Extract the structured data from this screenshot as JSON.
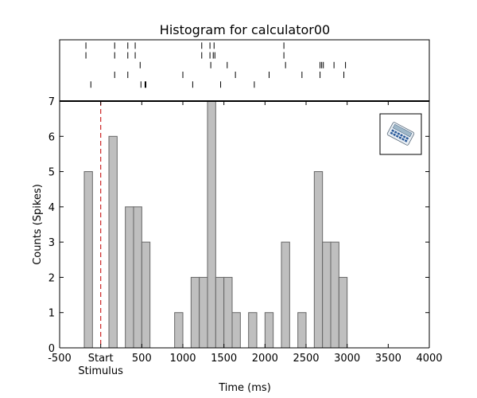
{
  "chart_data": {
    "type": "histogram",
    "title": "Histogram for calculator00",
    "xlabel": "Time (ms)",
    "ylabel": "Counts (Spikes)",
    "xlim": [
      -500,
      4000
    ],
    "ylim": [
      0,
      7
    ],
    "xticks": [
      -500,
      0,
      500,
      1000,
      1500,
      2000,
      2500,
      3000,
      3500,
      4000
    ],
    "xtick_labels": [
      "-500",
      "Start",
      "500",
      "1000",
      "1500",
      "2000",
      "2500",
      "3000",
      "3500",
      "4000"
    ],
    "xtick_sublabels": {
      "0": "Stimulus"
    },
    "yticks": [
      0,
      1,
      2,
      3,
      4,
      5,
      6,
      7
    ],
    "stimulus_line_x": 0,
    "bin_width": 100,
    "bins": [
      {
        "x": -200,
        "count": 5
      },
      {
        "x": 100,
        "count": 6
      },
      {
        "x": 300,
        "count": 4
      },
      {
        "x": 400,
        "count": 4
      },
      {
        "x": 500,
        "count": 3
      },
      {
        "x": 900,
        "count": 1
      },
      {
        "x": 1100,
        "count": 2
      },
      {
        "x": 1200,
        "count": 2
      },
      {
        "x": 1300,
        "count": 7
      },
      {
        "x": 1400,
        "count": 2
      },
      {
        "x": 1500,
        "count": 2
      },
      {
        "x": 1600,
        "count": 1
      },
      {
        "x": 1800,
        "count": 1
      },
      {
        "x": 2000,
        "count": 1
      },
      {
        "x": 2200,
        "count": 3
      },
      {
        "x": 2400,
        "count": 1
      },
      {
        "x": 2600,
        "count": 5
      },
      {
        "x": 2700,
        "count": 3
      },
      {
        "x": 2800,
        "count": 3
      },
      {
        "x": 2900,
        "count": 2
      }
    ],
    "raster_trials": [
      [
        -180,
        170,
        330,
        420,
        1230,
        1330,
        1380,
        2230
      ],
      [
        -180,
        170,
        330,
        420,
        1230,
        1330,
        1370,
        1390,
        2230
      ],
      [
        480,
        1340,
        1540,
        2250,
        2670,
        2690,
        2710,
        2840,
        2980
      ],
      [
        170,
        330,
        1000,
        1640,
        2050,
        2450,
        2670,
        2960
      ],
      [
        -120,
        490,
        540,
        550,
        1120,
        1460,
        1870
      ],
      []
    ],
    "colors": {
      "bar_fill": "#bfbfbf",
      "bar_edge": "#666666",
      "stimulus_line": "#cc2222",
      "raster": "#000000"
    },
    "inset_icon": "calculator-icon"
  }
}
